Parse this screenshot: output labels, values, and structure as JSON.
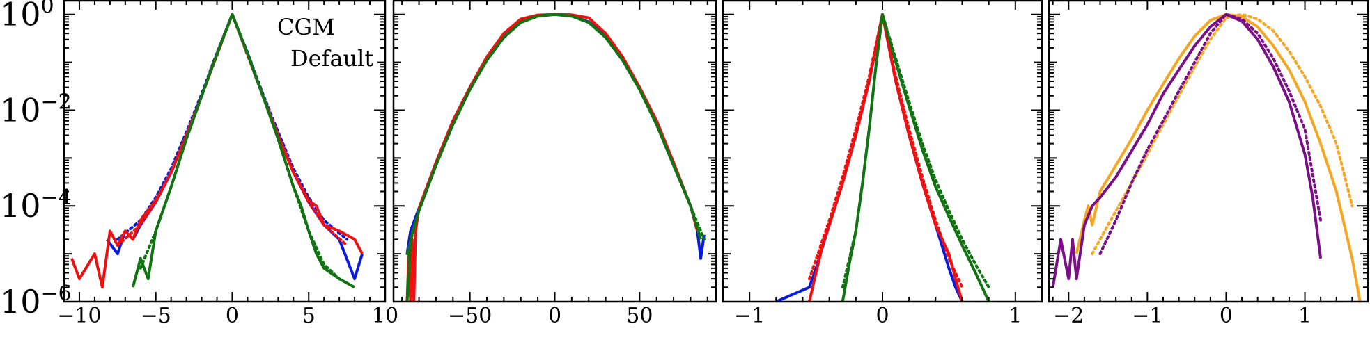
{
  "figure": {
    "annotations": [
      "CGM",
      "Default"
    ]
  },
  "colors": {
    "blue": "#0a1be0",
    "red": "#ef1010",
    "green": "#127312",
    "orange": "#f5a623",
    "purple": "#7a0f86"
  },
  "chart_data": [
    {
      "type": "line",
      "title": "",
      "xlabel": "",
      "ylabel": "",
      "yscale": "log",
      "xlim": [
        -11,
        10
      ],
      "ylim": [
        1e-06,
        2
      ],
      "xticks": [
        -10,
        -5,
        0,
        5,
        10
      ],
      "xtick_labels": [
        "−10",
        "−5",
        "0",
        "5",
        "10"
      ],
      "yticks": [
        1e-06,
        0.0001,
        0.01,
        1
      ],
      "ytick_labels": [
        [
          "10",
          "−6"
        ],
        [
          "10",
          "−4"
        ],
        [
          "10",
          "−2"
        ],
        [
          "10",
          "0"
        ]
      ],
      "annotations": [
        "CGM",
        "Default"
      ],
      "series": [
        {
          "color_key": "blue",
          "style": "solid",
          "x": [
            -8.2,
            -7.5,
            -7,
            -6.5,
            -6,
            -5,
            -4,
            -3,
            -2,
            -1,
            0,
            1,
            2,
            3,
            4,
            5,
            6,
            7,
            8,
            8.5
          ],
          "y": [
            2e-05,
            1e-05,
            3e-05,
            2e-05,
            4e-05,
            0.00012,
            0.0005,
            0.003,
            0.02,
            0.15,
            1,
            0.15,
            0.02,
            0.003,
            0.0005,
            0.00012,
            4e-05,
            2e-05,
            3e-06,
            1e-05
          ]
        },
        {
          "color_key": "blue",
          "style": "dotted",
          "x": [
            -7.5,
            -6,
            -5,
            -4,
            -3,
            -2,
            -1,
            0,
            1,
            2,
            3,
            4,
            5,
            6,
            7.5
          ],
          "y": [
            2e-05,
            5e-05,
            0.00015,
            0.0006,
            0.0035,
            0.022,
            0.16,
            1,
            0.16,
            0.022,
            0.0035,
            0.0006,
            0.00015,
            5e-05,
            2e-05
          ]
        },
        {
          "color_key": "red",
          "style": "solid",
          "x": [
            -10.5,
            -10,
            -9,
            -8.5,
            -8,
            -7.5,
            -7,
            -6.5,
            -6,
            -5,
            -4,
            -3,
            -2,
            -1,
            0,
            1,
            2,
            3,
            4,
            5,
            5.5,
            6,
            7,
            8,
            8.5
          ],
          "y": [
            8e-06,
            3e-06,
            1e-05,
            2e-06,
            3e-05,
            1.5e-05,
            3e-05,
            2e-05,
            5e-05,
            0.00013,
            0.0005,
            0.003,
            0.02,
            0.15,
            1,
            0.15,
            0.02,
            0.003,
            0.0005,
            0.00013,
            0.0001,
            4e-05,
            3e-05,
            2e-05,
            1e-05
          ]
        },
        {
          "color_key": "red",
          "style": "dotted",
          "x": [
            -7.5,
            -6,
            -5,
            -4,
            -3,
            -2,
            -1,
            0,
            1,
            2,
            3,
            4,
            5,
            6,
            7.5
          ],
          "y": [
            1.5e-05,
            4e-05,
            0.00012,
            0.0005,
            0.003,
            0.02,
            0.14,
            1,
            0.14,
            0.02,
            0.003,
            0.0005,
            0.00012,
            4e-05,
            1.5e-05
          ]
        },
        {
          "color_key": "green",
          "style": "solid",
          "x": [
            -6.5,
            -6,
            -5.5,
            -5,
            -4,
            -3,
            -2,
            -1,
            0,
            1,
            2,
            3,
            4,
            4.5,
            5,
            5.5,
            6,
            7,
            8
          ],
          "y": [
            2e-06,
            8e-06,
            3e-06,
            3e-05,
            0.00025,
            0.0025,
            0.02,
            0.15,
            1,
            0.15,
            0.02,
            0.0025,
            0.00025,
            0.0001,
            3e-05,
            1e-05,
            5e-06,
            3e-06,
            2e-06
          ]
        },
        {
          "color_key": "green",
          "style": "dotted",
          "x": [
            -6,
            -5,
            -4,
            -3,
            -2,
            -1,
            0,
            1,
            2,
            3,
            4,
            5,
            6,
            7
          ],
          "y": [
            5e-06,
            3e-05,
            0.00025,
            0.0025,
            0.02,
            0.15,
            1,
            0.15,
            0.02,
            0.0025,
            0.00025,
            3e-05,
            6e-06,
            3e-06
          ]
        }
      ]
    },
    {
      "type": "line",
      "title": "",
      "xlabel": "",
      "ylabel": "",
      "yscale": "log",
      "xlim": [
        -95,
        95
      ],
      "ylim": [
        1e-06,
        2
      ],
      "xticks": [
        -50,
        0,
        50
      ],
      "xtick_labels": [
        "−50",
        "0",
        "50"
      ],
      "series": [
        {
          "color_key": "blue",
          "style": "solid",
          "x": [
            -87,
            -85,
            -80,
            -70,
            -60,
            -50,
            -40,
            -30,
            -20,
            -10,
            0,
            10,
            20,
            30,
            40,
            50,
            60,
            70,
            80,
            84,
            86,
            88
          ],
          "y": [
            1e-05,
            3e-05,
            9e-05,
            0.0008,
            0.006,
            0.03,
            0.12,
            0.35,
            0.7,
            0.93,
            1,
            0.93,
            0.7,
            0.35,
            0.12,
            0.03,
            0.006,
            0.0008,
            0.0001,
            3e-05,
            8e-06,
            2.5e-05
          ]
        },
        {
          "color_key": "red",
          "style": "solid",
          "x": [
            -87,
            -86,
            -85,
            -84,
            -83,
            -82,
            -80,
            -70,
            -60,
            -50,
            -40,
            -30,
            -20,
            -10,
            0,
            10,
            20,
            30,
            40,
            50,
            60,
            70,
            80,
            84
          ],
          "y": [
            1e-06,
            1e-05,
            1e-06,
            2e-05,
            1e-06,
            3e-05,
            9e-05,
            0.0008,
            0.006,
            0.03,
            0.13,
            0.4,
            0.8,
            0.97,
            1,
            0.98,
            0.85,
            0.4,
            0.13,
            0.03,
            0.006,
            0.0008,
            0.0001,
            3e-05
          ]
        },
        {
          "color_key": "green",
          "style": "solid",
          "x": [
            -87,
            -85,
            -80,
            -70,
            -60,
            -50,
            -40,
            -30,
            -20,
            -10,
            0,
            10,
            20,
            30,
            40,
            50,
            60,
            70,
            80,
            86
          ],
          "y": [
            1e-06,
            2e-05,
            8e-05,
            0.0007,
            0.005,
            0.027,
            0.11,
            0.33,
            0.68,
            0.92,
            1,
            0.92,
            0.68,
            0.33,
            0.11,
            0.027,
            0.005,
            0.0007,
            0.0001,
            2e-05
          ]
        },
        {
          "color_key": "green",
          "style": "dotted",
          "x": [
            -87,
            -80,
            -70,
            -60,
            -50,
            -40,
            -30,
            -20,
            -10,
            0,
            10,
            20,
            30,
            40,
            50,
            60,
            70,
            80,
            88
          ],
          "y": [
            1e-05,
            8e-05,
            0.0007,
            0.005,
            0.027,
            0.11,
            0.33,
            0.68,
            0.92,
            1,
            0.92,
            0.68,
            0.33,
            0.11,
            0.027,
            0.005,
            0.0007,
            0.0001,
            2e-05
          ]
        }
      ]
    },
    {
      "type": "line",
      "title": "",
      "xlabel": "",
      "ylabel": "",
      "yscale": "log",
      "xlim": [
        -1.2,
        1.2
      ],
      "ylim": [
        1e-06,
        2
      ],
      "xticks": [
        -1,
        0,
        1
      ],
      "xtick_labels": [
        "−1",
        "0",
        "1"
      ],
      "series": [
        {
          "color_key": "blue",
          "style": "solid",
          "x": [
            -0.8,
            -0.55,
            -0.5,
            -0.4,
            -0.3,
            -0.2,
            -0.1,
            0,
            0.1,
            0.2,
            0.3,
            0.4,
            0.5,
            0.55,
            0.6
          ],
          "y": [
            1e-06,
            2e-06,
            5e-06,
            4e-05,
            0.0003,
            0.003,
            0.04,
            1,
            0.04,
            0.003,
            0.0003,
            4e-05,
            5e-06,
            2e-06,
            1e-06
          ]
        },
        {
          "color_key": "red",
          "style": "solid",
          "x": [
            -0.55,
            -0.5,
            -0.45,
            -0.4,
            -0.3,
            -0.2,
            -0.1,
            0,
            0.1,
            0.2,
            0.3,
            0.4,
            0.5,
            0.55,
            0.6
          ],
          "y": [
            1e-06,
            4e-06,
            1.5e-05,
            4e-05,
            0.0003,
            0.003,
            0.04,
            1,
            0.04,
            0.003,
            0.0003,
            4e-05,
            1e-05,
            3e-06,
            1e-06
          ]
        },
        {
          "color_key": "red",
          "style": "dotted",
          "x": [
            -0.55,
            -0.4,
            -0.3,
            -0.2,
            -0.1,
            0,
            0.1,
            0.2,
            0.3,
            0.4,
            0.5,
            0.6
          ],
          "y": [
            3e-06,
            5e-05,
            0.0004,
            0.004,
            0.05,
            1,
            0.05,
            0.004,
            0.0004,
            5e-05,
            8e-06,
            2e-06
          ]
        },
        {
          "color_key": "green",
          "style": "solid",
          "x": [
            -0.3,
            -0.25,
            -0.2,
            -0.15,
            -0.1,
            -0.05,
            0,
            0.1,
            0.2,
            0.3,
            0.4,
            0.5,
            0.6,
            0.7,
            0.8
          ],
          "y": [
            1e-06,
            6e-06,
            3e-05,
            0.0003,
            0.004,
            0.08,
            1,
            0.1,
            0.012,
            0.0015,
            0.00025,
            6e-05,
            1.5e-05,
            4e-06,
            1e-06
          ]
        },
        {
          "color_key": "green",
          "style": "dotted",
          "x": [
            -0.3,
            -0.2,
            -0.15,
            -0.1,
            -0.05,
            0,
            0.1,
            0.2,
            0.3,
            0.4,
            0.5,
            0.6,
            0.7,
            0.8
          ],
          "y": [
            2e-06,
            3e-05,
            0.0003,
            0.004,
            0.08,
            1,
            0.12,
            0.015,
            0.002,
            0.00035,
            8e-05,
            2e-05,
            6e-06,
            2e-06
          ]
        }
      ]
    },
    {
      "type": "line",
      "title": "",
      "xlabel": "",
      "ylabel": "",
      "yscale": "log",
      "xlim": [
        -2.25,
        1.8
      ],
      "ylim": [
        1e-06,
        2
      ],
      "xticks": [
        -2,
        -1,
        0,
        1
      ],
      "xtick_labels": [
        "−2",
        "−1",
        "0",
        "1"
      ],
      "series": [
        {
          "color_key": "orange",
          "style": "solid",
          "x": [
            -1.9,
            -1.8,
            -1.75,
            -1.7,
            -1.6,
            -1.4,
            -1.2,
            -1.0,
            -0.8,
            -0.6,
            -0.4,
            -0.2,
            0,
            0.2,
            0.4,
            0.6,
            0.8,
            1.0,
            1.2,
            1.4,
            1.6,
            1.7
          ],
          "y": [
            1e-05,
            5e-05,
            0.0001,
            4e-05,
            0.0002,
            0.0007,
            0.0025,
            0.01,
            0.035,
            0.12,
            0.35,
            0.75,
            1,
            0.9,
            0.55,
            0.22,
            0.07,
            0.015,
            0.002,
            0.0002,
            8e-06,
            1e-06
          ]
        },
        {
          "color_key": "orange",
          "style": "dotted",
          "x": [
            -1.7,
            -1.5,
            -1.2,
            -1.0,
            -0.8,
            -0.6,
            -0.4,
            -0.2,
            0,
            0.2,
            0.4,
            0.6,
            0.8,
            1.0,
            1.2,
            1.4,
            1.6
          ],
          "y": [
            1e-05,
            4e-05,
            0.0003,
            0.0012,
            0.005,
            0.02,
            0.08,
            0.3,
            0.85,
            1,
            0.8,
            0.45,
            0.17,
            0.05,
            0.012,
            0.002,
            0.0001
          ]
        },
        {
          "color_key": "purple",
          "style": "solid",
          "x": [
            -2.2,
            -2.1,
            -2.0,
            -1.95,
            -1.9,
            -1.8,
            -1.7,
            -1.6,
            -1.4,
            -1.2,
            -1.0,
            -0.8,
            -0.6,
            -0.4,
            -0.2,
            0,
            0.2,
            0.4,
            0.6,
            0.8,
            1.0,
            1.1,
            1.2
          ],
          "y": [
            2e-06,
            2e-05,
            3e-06,
            2e-05,
            3e-06,
            4e-05,
            0.0001,
            0.00015,
            0.0004,
            0.0014,
            0.005,
            0.022,
            0.07,
            0.22,
            0.55,
            1,
            0.72,
            0.3,
            0.08,
            0.015,
            0.0012,
            0.00015,
            8e-06
          ]
        },
        {
          "color_key": "purple",
          "style": "dotted",
          "x": [
            -1.6,
            -1.4,
            -1.2,
            -1.0,
            -0.8,
            -0.6,
            -0.4,
            -0.2,
            0,
            0.2,
            0.4,
            0.6,
            0.8,
            1.0,
            1.2
          ],
          "y": [
            1e-05,
            5e-05,
            0.0003,
            0.0015,
            0.006,
            0.025,
            0.1,
            0.4,
            1,
            0.8,
            0.4,
            0.12,
            0.025,
            0.004,
            5e-05
          ]
        }
      ]
    }
  ]
}
